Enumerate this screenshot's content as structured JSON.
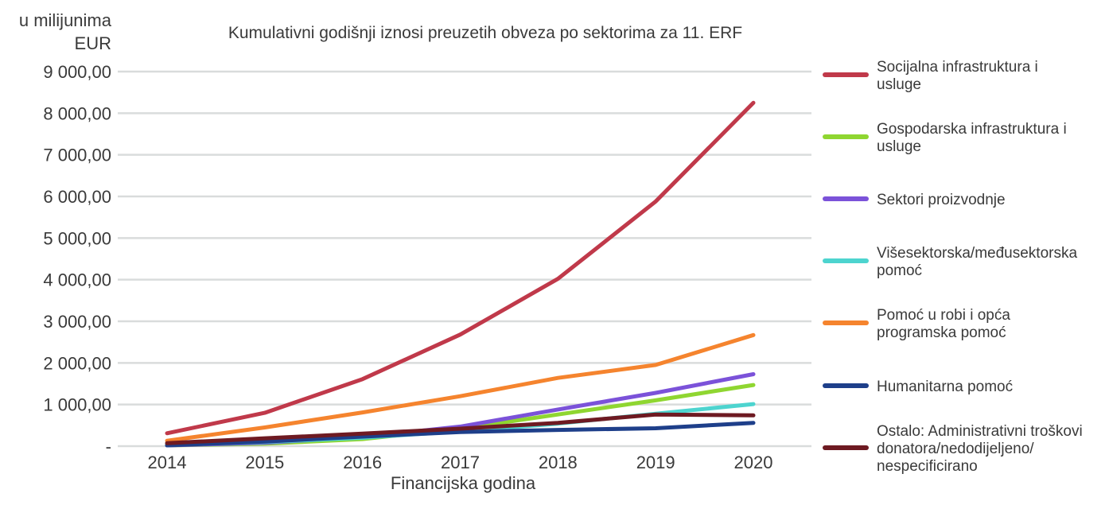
{
  "chart_data": {
    "type": "line",
    "title": "Kumulativni godišnji iznosi preuzetih obveza po sektorima za 11. ERF",
    "unit_label": [
      "u milijunima",
      "EUR"
    ],
    "xlabel": "Financijska godina",
    "ylabel": "u milijunima EUR",
    "categories": [
      "2014",
      "2015",
      "2016",
      "2017",
      "2018",
      "2019",
      "2020"
    ],
    "ylim": [
      0,
      9000
    ],
    "yticks": [
      {
        "value": 0,
        "label": "-"
      },
      {
        "value": 1000,
        "label": "1 000,00"
      },
      {
        "value": 2000,
        "label": "2 000,00"
      },
      {
        "value": 3000,
        "label": "3 000,00"
      },
      {
        "value": 4000,
        "label": "4 000,00"
      },
      {
        "value": 5000,
        "label": "5 000,00"
      },
      {
        "value": 6000,
        "label": "6 000,00"
      },
      {
        "value": 7000,
        "label": "7 000,00"
      },
      {
        "value": 8000,
        "label": "8 000,00"
      },
      {
        "value": 9000,
        "label": "9 000,00"
      }
    ],
    "grid": true,
    "legend_position": "right",
    "series": [
      {
        "name": "Socijalna infrastruktura i usluge",
        "legend_lines": [
          "Socijalna infrastruktura i",
          "usluge"
        ],
        "color": "#c0394a",
        "values": [
          310,
          800,
          1610,
          2680,
          4020,
          5880,
          8250
        ]
      },
      {
        "name": "Gospodarska infrastruktura i usluge",
        "legend_lines": [
          "Gospodarska infrastruktura i",
          "usluge"
        ],
        "color": "#8fd631",
        "values": [
          20,
          60,
          170,
          420,
          760,
          1100,
          1470
        ]
      },
      {
        "name": "Sektori proizvodnje",
        "legend_lines": [
          "Sektori proizvodnje"
        ],
        "color": "#7b52d9",
        "values": [
          20,
          80,
          220,
          470,
          880,
          1280,
          1730
        ]
      },
      {
        "name": "Višesektorska/međusektorska pomoć",
        "legend_lines": [
          "Višesektorska/međusektorska",
          "pomoć"
        ],
        "color": "#4dd4cf",
        "values": [
          30,
          100,
          200,
          360,
          540,
          780,
          1010
        ]
      },
      {
        "name": "Pomoć u robi i opća programska pomoć",
        "legend_lines": [
          "Pomoć u robi i opća",
          "programska pomoć"
        ],
        "color": "#f5842e",
        "values": [
          130,
          450,
          810,
          1200,
          1640,
          1950,
          2670
        ]
      },
      {
        "name": "Humanitarna pomoć",
        "legend_lines": [
          "Humanitarna pomoć"
        ],
        "color": "#1e3f8a",
        "values": [
          20,
          110,
          230,
          340,
          390,
          430,
          560
        ]
      },
      {
        "name": "Ostalo: Administrativni troškovi donatora/nedodijeljeno/nespecificirano",
        "legend_lines": [
          "Ostalo: Administrativni troškovi",
          "donatora/nedodijeljeno/",
          "nespecificirano"
        ],
        "color": "#6e1a22",
        "values": [
          70,
          190,
          300,
          420,
          560,
          760,
          740
        ]
      }
    ]
  }
}
